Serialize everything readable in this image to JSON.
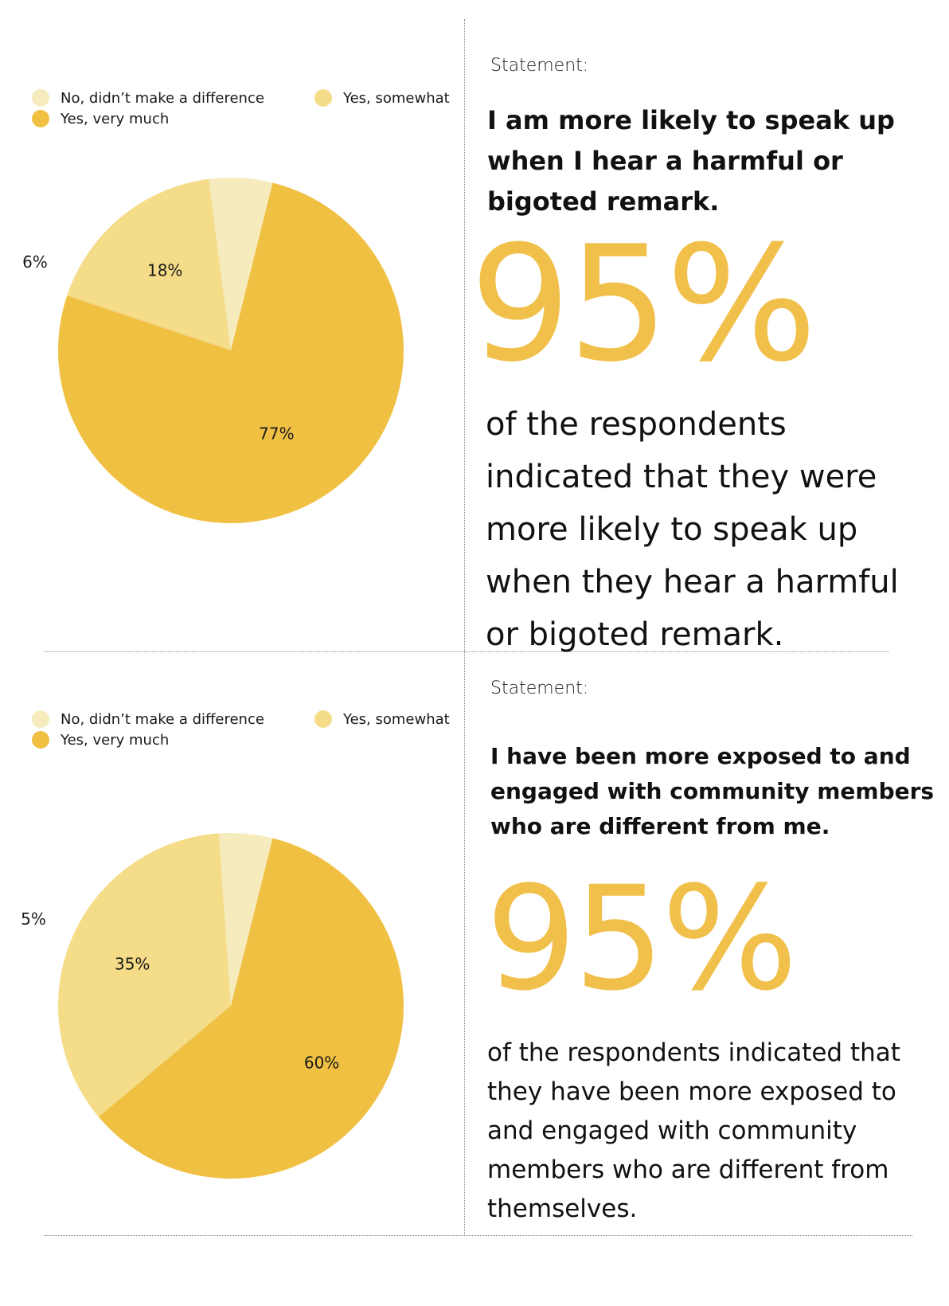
{
  "chart_data": [
    {
      "type": "pie",
      "legend": [
        "No, didn’t make a difference",
        "Yes, somewhat",
        "Yes, very much"
      ],
      "colors": [
        "#f6ebbc",
        "#f4dc88",
        "#f0c043"
      ],
      "values": [
        6,
        18,
        77
      ],
      "labels": [
        "6%",
        "18%",
        "77%"
      ],
      "legend_position": "top"
    },
    {
      "type": "pie",
      "legend": [
        "No, didn’t make a difference",
        "Yes, somewhat",
        "Yes, very much"
      ],
      "colors": [
        "#f6ebbc",
        "#f4dc88",
        "#f0c043"
      ],
      "values": [
        5,
        35,
        60
      ],
      "labels": [
        "5%",
        "35%",
        "60%"
      ],
      "legend_position": "top"
    }
  ],
  "panels": [
    {
      "statement_label": "Statement:",
      "statement": " I am more likely to speak up when I hear a harmful or bigoted remark.",
      "big_percent": "95%",
      "description": "of the respondents indicated that they were more likely to speak up when they hear a harmful or bigoted remark."
    },
    {
      "statement_label": "Statement:",
      "statement": "I have been more exposed to and engaged with community members who are different from me.",
      "big_percent": "95%",
      "description": "of the respondents indicated that they have been more exposed to and engaged with community members who are different from themselves."
    }
  ]
}
